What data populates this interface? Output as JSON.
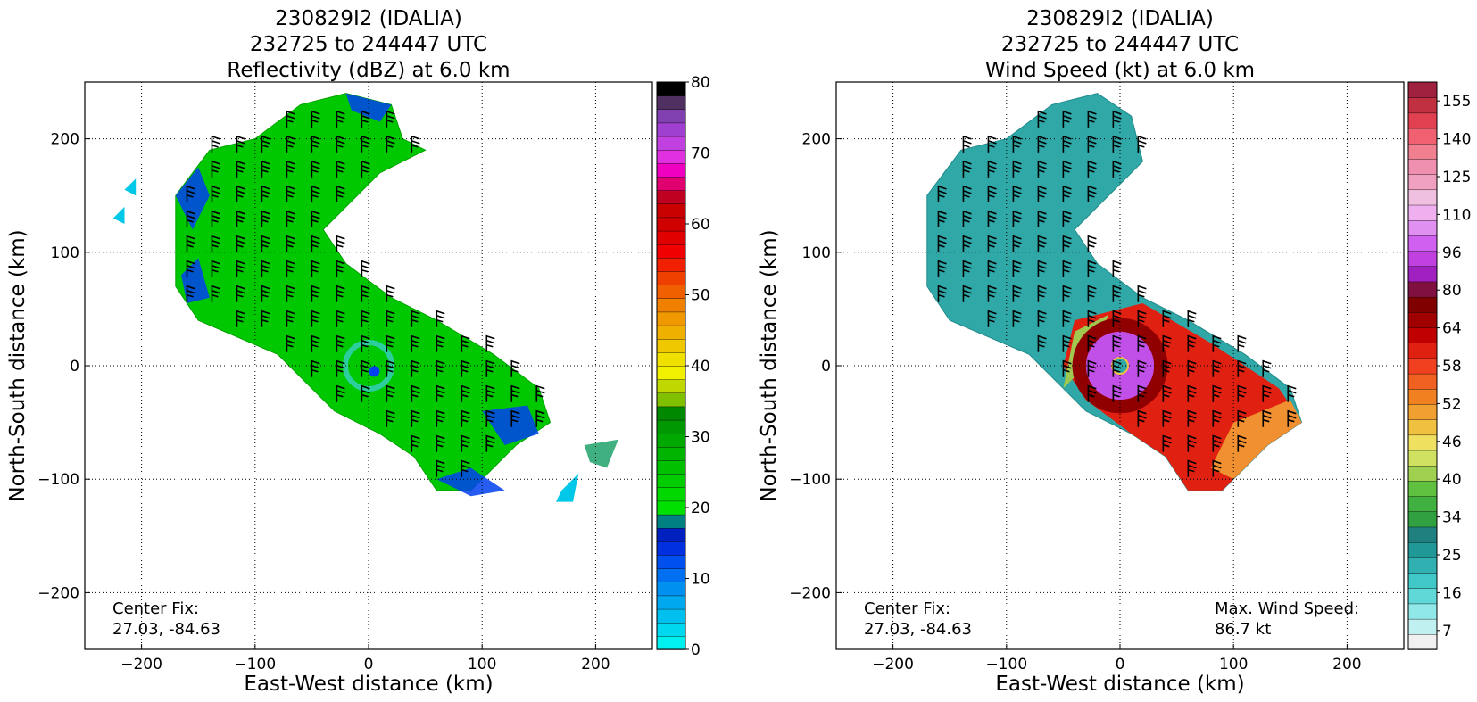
{
  "chart_data": [
    {
      "type": "heatmap",
      "title_lines": [
        "230829I2 (IDALIA)",
        "232725 to 244447 UTC",
        "Reflectivity (dBZ) at 6.0 km"
      ],
      "xlabel": "East-West distance (km)",
      "ylabel": "North-South distance (km)",
      "xlim": [
        -250,
        250
      ],
      "ylim": [
        -250,
        250
      ],
      "x_ticks": [
        -200,
        -100,
        0,
        100,
        200
      ],
      "y_ticks": [
        200,
        100,
        0,
        -100,
        -200
      ],
      "x_tick_labels": [
        "−200",
        "−100",
        "0",
        "100",
        "200"
      ],
      "y_tick_labels": [
        "200",
        "100",
        "0",
        "−100",
        "−200"
      ],
      "grid": true,
      "annotation_lines": [
        "Center Fix:",
        "27.03, -84.63"
      ],
      "colorbar": {
        "min": 0,
        "max": 80,
        "tick_labels": [
          "0",
          "10",
          "20",
          "30",
          "40",
          "50",
          "60",
          "70",
          "80"
        ],
        "tick_values": [
          0,
          10,
          20,
          30,
          40,
          50,
          60,
          70,
          80
        ],
        "colors": [
          "#00f0f0",
          "#00d8f0",
          "#00c0f0",
          "#00a8f0",
          "#0090f0",
          "#0070f0",
          "#0050f0",
          "#0030e0",
          "#0020c0",
          "#008080",
          "#00e000",
          "#00d800",
          "#00cc00",
          "#00c000",
          "#00b400",
          "#00a800",
          "#009800",
          "#008800",
          "#80c000",
          "#c0d800",
          "#f0f000",
          "#f0e000",
          "#f0c800",
          "#f0b000",
          "#f09800",
          "#f08000",
          "#f06000",
          "#f04000",
          "#f02000",
          "#f00000",
          "#e00000",
          "#d00000",
          "#c80000",
          "#c00020",
          "#e00070",
          "#f000c0",
          "#e030e0",
          "#c040e0",
          "#a040d0",
          "#8040b0",
          "#503060",
          "#000000"
        ]
      },
      "field": {
        "center_km": [
          0,
          0
        ],
        "polygon_km": [
          [
            -170,
            150
          ],
          [
            -140,
            190
          ],
          [
            -100,
            200
          ],
          [
            -60,
            230
          ],
          [
            -20,
            240
          ],
          [
            20,
            230
          ],
          [
            30,
            200
          ],
          [
            50,
            190
          ],
          [
            10,
            170
          ],
          [
            -20,
            140
          ],
          [
            -40,
            120
          ],
          [
            -20,
            90
          ],
          [
            20,
            60
          ],
          [
            60,
            40
          ],
          [
            110,
            10
          ],
          [
            150,
            -20
          ],
          [
            160,
            -50
          ],
          [
            130,
            -70
          ],
          [
            90,
            -110
          ],
          [
            60,
            -110
          ],
          [
            40,
            -80
          ],
          [
            10,
            -60
          ],
          [
            -30,
            -40
          ],
          [
            -80,
            10
          ],
          [
            -150,
            40
          ],
          [
            -170,
            70
          ],
          [
            -170,
            110
          ]
        ],
        "fill": "#00c800",
        "blue_patches_km": [
          [
            [
              -170,
              150
            ],
            [
              -150,
              175
            ],
            [
              -140,
              150
            ],
            [
              -155,
              120
            ]
          ],
          [
            [
              -165,
              80
            ],
            [
              -150,
              95
            ],
            [
              -140,
              60
            ],
            [
              -160,
              55
            ]
          ],
          [
            [
              60,
              -100
            ],
            [
              90,
              -90
            ],
            [
              120,
              -110
            ],
            [
              90,
              -115
            ]
          ],
          [
            [
              100,
              -40
            ],
            [
              140,
              -35
            ],
            [
              150,
              -60
            ],
            [
              120,
              -70
            ]
          ],
          [
            [
              -20,
              240
            ],
            [
              20,
              230
            ],
            [
              10,
              215
            ],
            [
              -15,
              225
            ]
          ]
        ],
        "isolated_patches_km": [
          [
            [
              190,
              -70
            ],
            [
              220,
              -65
            ],
            [
              210,
              -90
            ],
            [
              195,
              -85
            ]
          ],
          [
            [
              170,
              -110
            ],
            [
              185,
              -95
            ],
            [
              180,
              -120
            ],
            [
              165,
              -120
            ]
          ],
          [
            [
              -215,
              155
            ],
            [
              -205,
              165
            ],
            [
              -205,
              150
            ]
          ],
          [
            [
              -225,
              130
            ],
            [
              -215,
              140
            ],
            [
              -215,
              125
            ]
          ]
        ]
      }
    },
    {
      "type": "heatmap",
      "title_lines": [
        "230829I2 (IDALIA)",
        "232725 to 244447 UTC",
        "Wind Speed (kt) at 6.0 km"
      ],
      "xlabel": "East-West distance (km)",
      "ylabel": "North-South distance (km)",
      "xlim": [
        -250,
        250
      ],
      "ylim": [
        -250,
        250
      ],
      "x_ticks": [
        -200,
        -100,
        0,
        100,
        200
      ],
      "y_ticks": [
        200,
        100,
        0,
        -100,
        -200
      ],
      "x_tick_labels": [
        "−200",
        "−100",
        "0",
        "100",
        "200"
      ],
      "y_tick_labels": [
        "200",
        "100",
        "0",
        "−100",
        "−200"
      ],
      "grid": true,
      "annotation_lines": [
        "Center Fix:",
        "27.03, -84.63"
      ],
      "max_wind_lines": [
        "Max. Wind Speed:",
        "86.7 kt"
      ],
      "colorbar": {
        "min": 4,
        "max": 160,
        "tick_labels": [
          "7",
          "16",
          "25",
          "34",
          "40",
          "46",
          "52",
          "58",
          "64",
          "80",
          "96",
          "110",
          "125",
          "140",
          "155"
        ],
        "colors": [
          "#f0f0f0",
          "#c0f0f0",
          "#90e8e8",
          "#60d8d8",
          "#40c8c8",
          "#30b0b0",
          "#209898",
          "#208080",
          "#30a040",
          "#40b040",
          "#60c040",
          "#a0d050",
          "#d0e060",
          "#f0e060",
          "#f0c040",
          "#f0a030",
          "#f08020",
          "#f06020",
          "#f04020",
          "#e02010",
          "#c00000",
          "#a00000",
          "#800000",
          "#801040",
          "#a020c0",
          "#c040e0",
          "#d060f0",
          "#e090f0",
          "#f0b0f0",
          "#f0c0e0",
          "#f0a0c0",
          "#f090b0",
          "#f08090",
          "#f06070",
          "#e04050",
          "#c03040",
          "#a02040"
        ]
      },
      "field": {
        "center_km": [
          0,
          0
        ],
        "polygon_km": [
          [
            -170,
            150
          ],
          [
            -140,
            190
          ],
          [
            -100,
            200
          ],
          [
            -60,
            230
          ],
          [
            -20,
            240
          ],
          [
            10,
            220
          ],
          [
            20,
            180
          ],
          [
            -20,
            140
          ],
          [
            -40,
            120
          ],
          [
            -20,
            90
          ],
          [
            20,
            60
          ],
          [
            60,
            40
          ],
          [
            110,
            10
          ],
          [
            150,
            -20
          ],
          [
            160,
            -50
          ],
          [
            130,
            -70
          ],
          [
            90,
            -110
          ],
          [
            60,
            -110
          ],
          [
            40,
            -80
          ],
          [
            10,
            -60
          ],
          [
            -30,
            -40
          ],
          [
            -80,
            10
          ],
          [
            -150,
            40
          ],
          [
            -170,
            70
          ],
          [
            -170,
            110
          ]
        ],
        "fill": "#30a8a8",
        "warm_region_km": [
          [
            -40,
            40
          ],
          [
            20,
            55
          ],
          [
            80,
            20
          ],
          [
            140,
            -20
          ],
          [
            160,
            -50
          ],
          [
            130,
            -70
          ],
          [
            90,
            -110
          ],
          [
            60,
            -110
          ],
          [
            40,
            -80
          ],
          [
            10,
            -60
          ],
          [
            -30,
            -30
          ],
          [
            -50,
            0
          ]
        ],
        "core_radius_km": 30
      }
    }
  ]
}
